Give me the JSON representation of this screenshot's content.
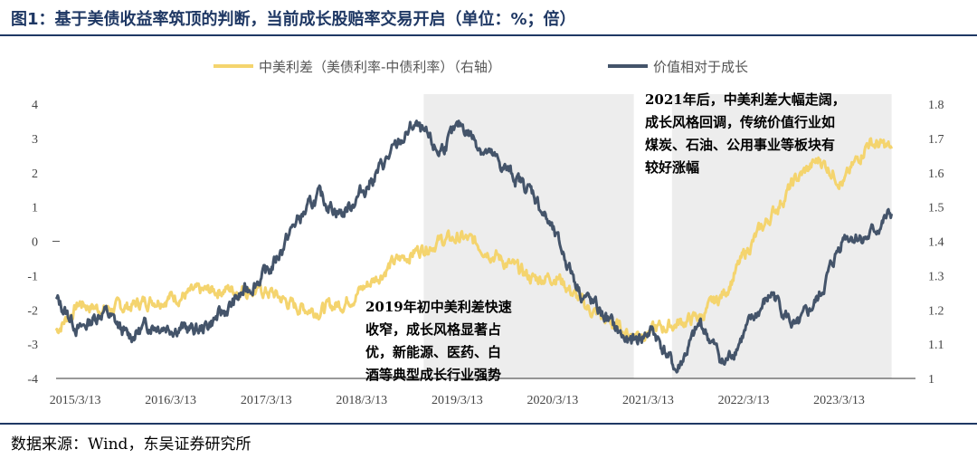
{
  "title": "图1：基于美债收益率筑顶的判断，当前成长股赔率交易开启（单位：%；倍）",
  "source": "数据来源：Wind，东吴证券研究所",
  "colors": {
    "spread": "#f4d46e",
    "value_growth": "#44546a",
    "shade": "#ededed",
    "rule": "#1f3864"
  },
  "chart_data": {
    "type": "line",
    "xlabel": "",
    "x_ticks": [
      "2015/3/13",
      "2016/3/13",
      "2017/3/13",
      "2018/3/13",
      "2019/3/13",
      "2020/3/13",
      "2021/3/13",
      "2022/3/13",
      "2023/3/13"
    ],
    "x_range": [
      "2015-01",
      "2024-01"
    ],
    "y_left": {
      "range": [
        -4,
        4
      ],
      "ticks": [
        "4",
        "3",
        "2",
        "1",
        "0",
        "-1",
        "-2",
        "-3",
        "-4"
      ]
    },
    "y_right": {
      "range": [
        1.0,
        1.8
      ],
      "ticks": [
        "1.8",
        "1.7",
        "1.6",
        "1.5",
        "1.4",
        "1.3",
        "1.2",
        "1.1",
        "1"
      ]
    },
    "shaded_periods": [
      {
        "start": 2018.85,
        "end": 2021.05
      },
      {
        "start": 2021.45,
        "end": 2023.75
      }
    ],
    "series": [
      {
        "name": "中美利差（美债利率-中债利率）（右轴）",
        "axis": "right",
        "x": [
          2015.0,
          2015.25,
          2015.5,
          2015.75,
          2016.0,
          2016.25,
          2016.5,
          2016.75,
          2017.0,
          2017.25,
          2017.5,
          2017.75,
          2018.0,
          2018.25,
          2018.5,
          2018.75,
          2019.0,
          2019.25,
          2019.5,
          2019.75,
          2020.0,
          2020.25,
          2020.5,
          2020.75,
          2021.0,
          2021.25,
          2021.5,
          2021.75,
          2022.0,
          2022.25,
          2022.5,
          2022.75,
          2023.0,
          2023.25,
          2023.5,
          2023.75
        ],
        "y": [
          1.14,
          1.22,
          1.2,
          1.21,
          1.23,
          1.24,
          1.25,
          1.26,
          1.26,
          1.25,
          1.21,
          1.2,
          1.22,
          1.27,
          1.33,
          1.37,
          1.4,
          1.41,
          1.38,
          1.33,
          1.29,
          1.3,
          1.22,
          1.17,
          1.13,
          1.14,
          1.16,
          1.18,
          1.25,
          1.38,
          1.48,
          1.58,
          1.64,
          1.57,
          1.69,
          1.67
        ]
      },
      {
        "name": "价值相对于成长",
        "axis": "left",
        "x": [
          2015.0,
          2015.25,
          2015.5,
          2015.75,
          2016.0,
          2016.25,
          2016.5,
          2016.75,
          2017.0,
          2017.25,
          2017.5,
          2017.75,
          2018.0,
          2018.25,
          2018.5,
          2018.75,
          2019.0,
          2019.25,
          2019.5,
          2019.75,
          2020.0,
          2020.25,
          2020.5,
          2020.75,
          2021.0,
          2021.25,
          2021.5,
          2021.75,
          2022.0,
          2022.25,
          2022.5,
          2022.75,
          2023.0,
          2023.25,
          2023.5,
          2023.75
        ],
        "y": [
          -1.7,
          -2.6,
          -2.0,
          -2.8,
          -2.4,
          -2.5,
          -2.6,
          -2.1,
          -1.4,
          -0.8,
          0.5,
          1.3,
          0.8,
          1.6,
          2.5,
          3.4,
          2.6,
          3.4,
          2.6,
          2.0,
          1.4,
          0.0,
          -1.5,
          -2.2,
          -3.0,
          -2.6,
          -3.8,
          -2.4,
          -3.6,
          -2.5,
          -1.5,
          -2.6,
          -1.6,
          0.2,
          0.1,
          0.8
        ]
      }
    ],
    "annotations": [
      {
        "lines": [
          "2021年后，中美利差大幅走阔，",
          "成长风格回调，传统价值行业如",
          "煤炭、石油、公用事业等板块有",
          "较好涨幅"
        ]
      },
      {
        "lines": [
          "2019年初中美利差快速",
          "收窄，成长风格显著占",
          "优，新能源、医药、白",
          "酒等典型成长行业强势"
        ]
      }
    ]
  }
}
